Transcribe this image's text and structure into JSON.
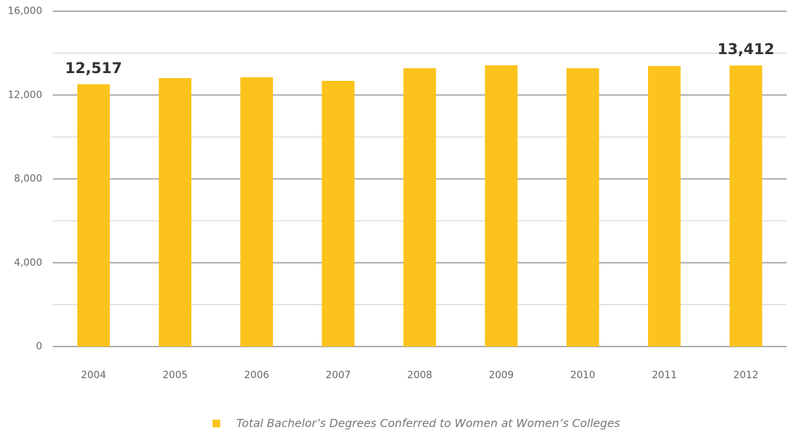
{
  "chart_data": {
    "type": "bar",
    "categories": [
      "2004",
      "2005",
      "2006",
      "2007",
      "2008",
      "2009",
      "2010",
      "2011",
      "2012"
    ],
    "series": [
      {
        "name": "Total Bachelor’s Degrees Conferred to Women at Women’s Colleges",
        "color": "#fbc31c",
        "values": [
          12517,
          12810,
          12850,
          12680,
          13280,
          13420,
          13280,
          13390,
          13412
        ],
        "value_labels": [
          "12,517",
          null,
          null,
          null,
          null,
          null,
          null,
          null,
          "13,412"
        ]
      }
    ],
    "ylim": [
      0,
      16000
    ],
    "yticks": [
      0,
      {
        "value": 4000,
        "label": "4,000"
      },
      {
        "value": 8000,
        "label": "8,000"
      },
      {
        "value": 12000,
        "label": "12,000"
      },
      {
        "value": 16000,
        "label": "16,000"
      }
    ],
    "minor_yticks": [
      2000,
      6000,
      10000,
      14000
    ],
    "grid": true,
    "legend": "bottom"
  }
}
